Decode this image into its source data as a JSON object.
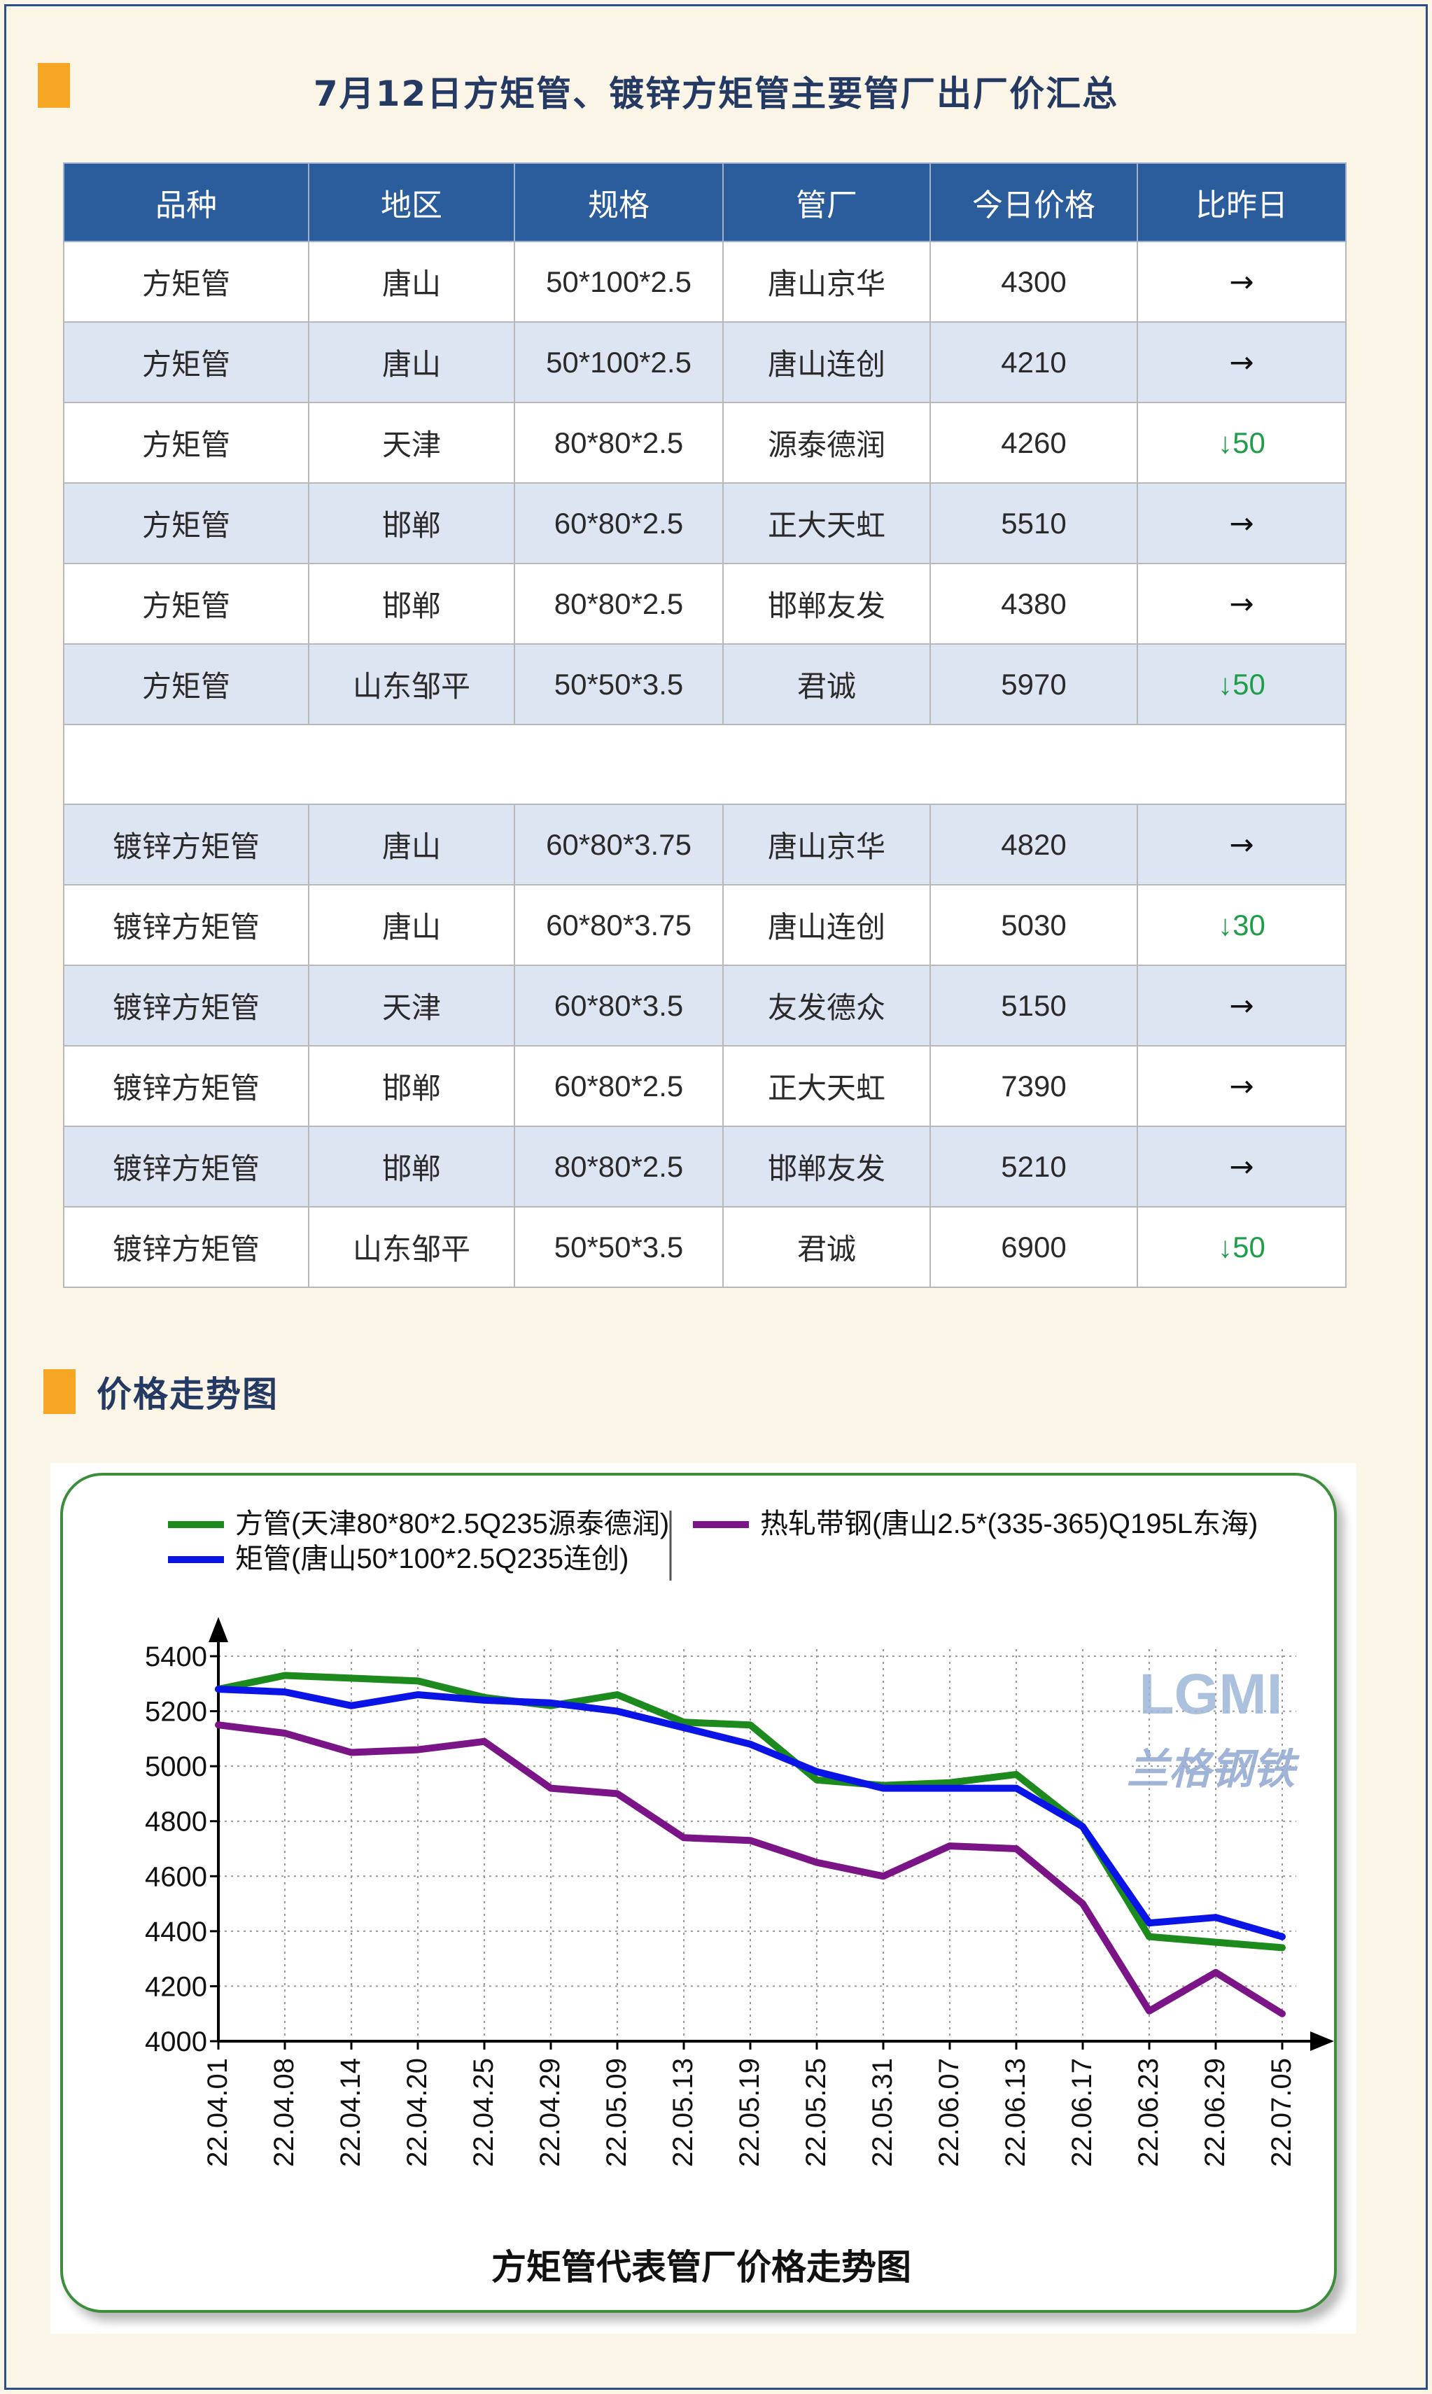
{
  "header": {
    "title": "7月12日方矩管、镀锌方矩管主要管厂出厂价汇总"
  },
  "table": {
    "columns": [
      "品种",
      "地区",
      "规格",
      "管厂",
      "今日价格",
      "比昨日"
    ],
    "rows_a": [
      {
        "variety": "方矩管",
        "region": "唐山",
        "spec": "50*100*2.5",
        "mill": "唐山京华",
        "price": "4300",
        "change": "→",
        "dir": "flat"
      },
      {
        "variety": "方矩管",
        "region": "唐山",
        "spec": "50*100*2.5",
        "mill": "唐山连创",
        "price": "4210",
        "change": "→",
        "dir": "flat"
      },
      {
        "variety": "方矩管",
        "region": "天津",
        "spec": "80*80*2.5",
        "mill": "源泰德润",
        "price": "4260",
        "change": "↓50",
        "dir": "down"
      },
      {
        "variety": "方矩管",
        "region": "邯郸",
        "spec": "60*80*2.5",
        "mill": "正大天虹",
        "price": "5510",
        "change": "→",
        "dir": "flat"
      },
      {
        "variety": "方矩管",
        "region": "邯郸",
        "spec": "80*80*2.5",
        "mill": "邯郸友发",
        "price": "4380",
        "change": "→",
        "dir": "flat"
      },
      {
        "variety": "方矩管",
        "region": "山东邹平",
        "spec": "50*50*3.5",
        "mill": "君诚",
        "price": "5970",
        "change": "↓50",
        "dir": "down"
      }
    ],
    "rows_b": [
      {
        "variety": "镀锌方矩管",
        "region": "唐山",
        "spec": "60*80*3.75",
        "mill": "唐山京华",
        "price": "4820",
        "change": "→",
        "dir": "flat"
      },
      {
        "variety": "镀锌方矩管",
        "region": "唐山",
        "spec": "60*80*3.75",
        "mill": "唐山连创",
        "price": "5030",
        "change": "↓30",
        "dir": "down"
      },
      {
        "variety": "镀锌方矩管",
        "region": "天津",
        "spec": "60*80*3.5",
        "mill": "友发德众",
        "price": "5150",
        "change": "→",
        "dir": "flat"
      },
      {
        "variety": "镀锌方矩管",
        "region": "邯郸",
        "spec": "60*80*2.5",
        "mill": "正大天虹",
        "price": "7390",
        "change": "→",
        "dir": "flat"
      },
      {
        "variety": "镀锌方矩管",
        "region": "邯郸",
        "spec": "80*80*2.5",
        "mill": "邯郸友发",
        "price": "5210",
        "change": "→",
        "dir": "flat"
      },
      {
        "variety": "镀锌方矩管",
        "region": "山东邹平",
        "spec": "50*50*3.5",
        "mill": "君诚",
        "price": "6900",
        "change": "↓50",
        "dir": "down"
      }
    ]
  },
  "trend_section": {
    "title": "价格走势图"
  },
  "colors": {
    "accent": "#f6a623",
    "header_bg": "#2b5d9c",
    "row_alt": "#dde4f2",
    "down": "#1f9e4a",
    "series_green": "#1d8a1d",
    "series_blue": "#0a14e6",
    "series_purple": "#7a1487"
  },
  "chart_data": {
    "type": "line",
    "title": "方矩管代表管厂价格走势图",
    "watermark": {
      "logo": "LGMI",
      "text": "兰格钢铁"
    },
    "ylim": [
      4000,
      5400
    ],
    "yticks": [
      4000,
      4200,
      4400,
      4600,
      4800,
      5000,
      5200,
      5400
    ],
    "grid": true,
    "legend_position": "top",
    "x": [
      "22.04.01",
      "22.04.08",
      "22.04.14",
      "22.04.20",
      "22.04.25",
      "22.04.29",
      "22.05.09",
      "22.05.13",
      "22.05.19",
      "22.05.25",
      "22.05.31",
      "22.06.07",
      "22.06.13",
      "22.06.17",
      "22.06.23",
      "22.06.29",
      "22.07.05"
    ],
    "series": [
      {
        "name": "方管(天津80*80*2.5Q235源泰德润)",
        "color": "#1d8a1d",
        "values": [
          5280,
          5330,
          5320,
          5310,
          5250,
          5220,
          5260,
          5160,
          5150,
          4950,
          4930,
          4940,
          4970,
          4780,
          4380,
          4360,
          4340
        ]
      },
      {
        "name": "矩管(唐山50*100*2.5Q235连创)",
        "color": "#0a14e6",
        "values": [
          5280,
          5270,
          5220,
          5260,
          5240,
          5230,
          5200,
          5140,
          5080,
          4980,
          4920,
          4920,
          4920,
          4780,
          4430,
          4450,
          4380
        ]
      },
      {
        "name": "热轧带钢(唐山2.5*(335-365)Q195L东海)",
        "color": "#7a1487",
        "values": [
          5150,
          5120,
          5050,
          5060,
          5090,
          4920,
          4900,
          4740,
          4730,
          4650,
          4600,
          4710,
          4700,
          4500,
          4110,
          4250,
          4100
        ]
      }
    ]
  }
}
